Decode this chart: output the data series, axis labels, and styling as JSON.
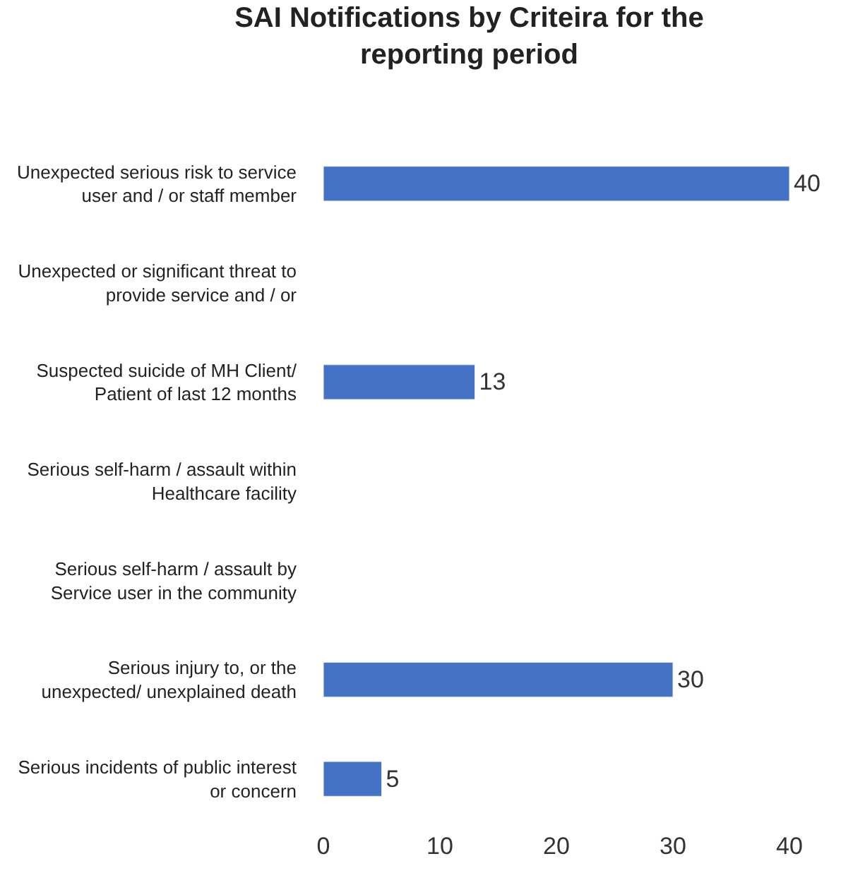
{
  "chart_data": {
    "type": "bar",
    "orientation": "horizontal",
    "title": "SAI Notifications by Criteira for the reporting period",
    "categories": [
      "Unexpected serious risk to service user and / or staff member",
      "Unexpected or significant threat to provide service and / or",
      "Suspected suicide of MH Client/ Patient of last 12 months",
      "Serious self-harm / assault within Healthcare facility",
      "Serious self-harm / assault by Service user in the community",
      "Serious injury to, or the unexpected/ unexplained death",
      "Serious incidents of public interest or concern"
    ],
    "values": [
      40,
      null,
      13,
      null,
      null,
      30,
      5
    ],
    "value_labels": [
      "40",
      null,
      "13",
      null,
      null,
      "30",
      "5"
    ],
    "color": "#4472c4",
    "xlim": [
      0,
      40
    ],
    "xticks": [
      0,
      10,
      20,
      30,
      40
    ],
    "legend": false
  }
}
